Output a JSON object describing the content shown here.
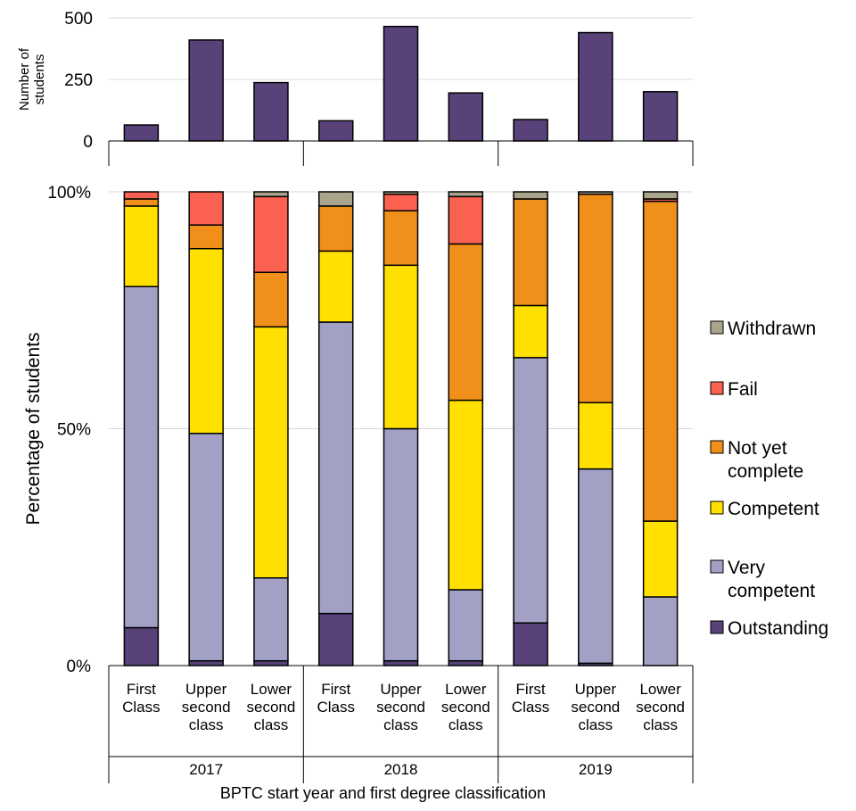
{
  "chart_data": [
    {
      "type": "bar",
      "ylabel": "Number of students",
      "ylabel_lines": [
        "Number of",
        "students"
      ],
      "ylim": [
        0,
        500
      ],
      "yticks": [
        0,
        250,
        500
      ],
      "grid": true,
      "categories": [
        "First Class",
        "Upper second class",
        "Lower second class",
        "First Class",
        "Upper second class",
        "Lower second class",
        "First Class",
        "Upper second class",
        "Lower second class"
      ],
      "groups": [
        "2017",
        "2018",
        "2019"
      ],
      "values": [
        65,
        410,
        237,
        82,
        465,
        195,
        87,
        440,
        200
      ],
      "color": "#59427a"
    },
    {
      "type": "bar",
      "stacked": true,
      "percent": true,
      "ylabel": "Percentage of students",
      "xlabel": "BPTC start year and first degree classification",
      "ylim": [
        0,
        100
      ],
      "yticks": [
        0,
        50,
        100
      ],
      "ytick_labels": [
        "0%",
        "50%",
        "100%"
      ],
      "grid": true,
      "legend": "right",
      "groups": [
        "2017",
        "2018",
        "2019"
      ],
      "categories": [
        [
          "First",
          "Class"
        ],
        [
          "Upper",
          "second",
          "class"
        ],
        [
          "Lower",
          "second",
          "class"
        ],
        [
          "First",
          "Class"
        ],
        [
          "Upper",
          "second",
          "class"
        ],
        [
          "Lower",
          "second",
          "class"
        ],
        [
          "First",
          "Class"
        ],
        [
          "Upper",
          "second",
          "class"
        ],
        [
          "Lower",
          "second",
          "class"
        ]
      ],
      "series": [
        {
          "name": "Outstanding",
          "color": "#59427a",
          "values": [
            8,
            1,
            1,
            11,
            1,
            1,
            9,
            0.5,
            0
          ]
        },
        {
          "name": "Very competent",
          "color": "#a3a0c6",
          "values": [
            72,
            48,
            17.5,
            61.5,
            49,
            15,
            56,
            41,
            14.5
          ]
        },
        {
          "name": "Competent",
          "color": "#ffe000",
          "values": [
            17,
            39,
            53,
            15,
            34.5,
            40,
            11,
            14,
            16
          ]
        },
        {
          "name": "Not yet complete",
          "color": "#f0901a",
          "values": [
            1.5,
            5,
            11.5,
            9.5,
            11.5,
            33,
            22.5,
            44,
            67.5
          ]
        },
        {
          "name": "Fail",
          "color": "#fb6150",
          "values": [
            1.5,
            7,
            16,
            0,
            3.5,
            10,
            0,
            0,
            0.5
          ]
        },
        {
          "name": "Withdrawn",
          "color": "#a9a58d",
          "values": [
            0,
            0,
            1,
            3,
            0.5,
            1,
            1.5,
            0.5,
            1.5
          ]
        }
      ]
    }
  ]
}
